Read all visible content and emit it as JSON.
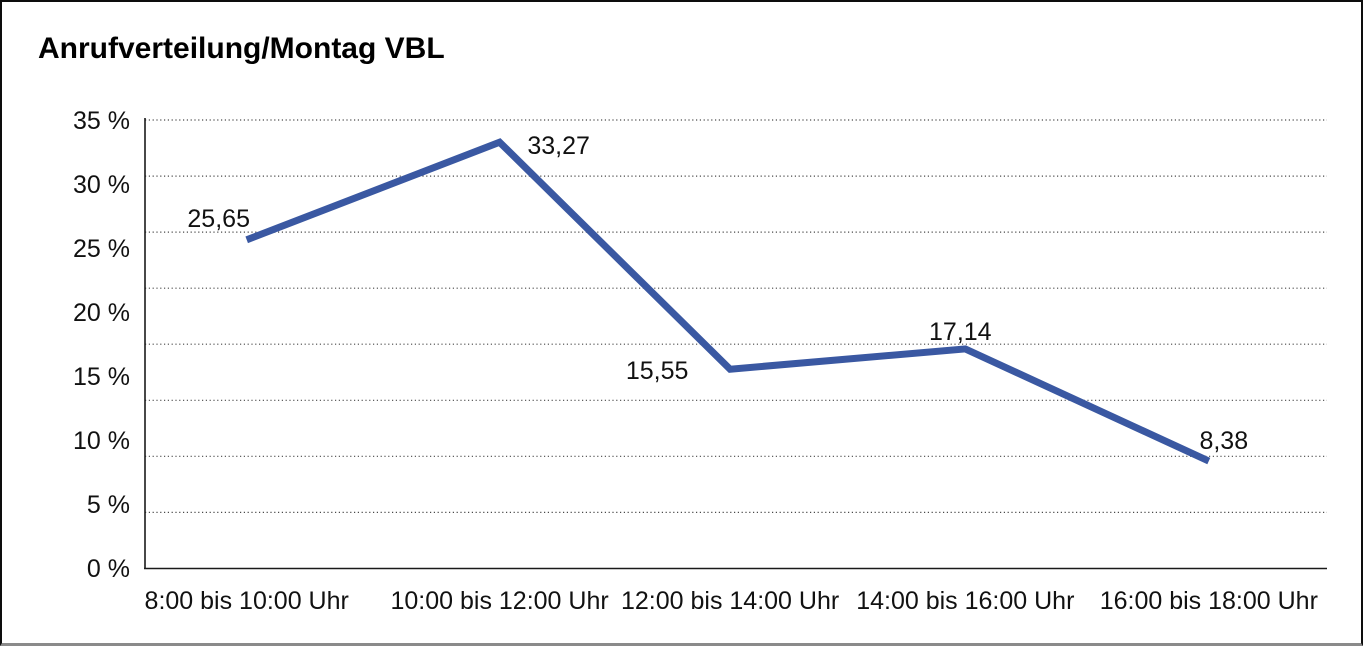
{
  "title": "Anrufverteilung/Montag VBL",
  "chart_data": {
    "type": "line",
    "title": "Anrufverteilung/Montag VBL",
    "categories": [
      "8:00 bis 10:00 Uhr",
      "10:00 bis 12:00 Uhr",
      "12:00 bis 14:00 Uhr",
      "14:00 bis 16:00 Uhr",
      "16:00 bis 18:00 Uhr"
    ],
    "values": [
      25.65,
      33.27,
      15.55,
      17.14,
      8.38
    ],
    "point_labels": [
      "25,65",
      "33,27",
      "15,55",
      "17,14",
      "8,38"
    ],
    "yticks": [
      "35 %",
      "30 %",
      "25 %",
      "20 %",
      "15 %",
      "10 %",
      "5 %",
      "0 %"
    ],
    "ylim": [
      0,
      35
    ],
    "xlabel": "",
    "ylabel": "",
    "legend": "none",
    "grid": "horizontal-dotted",
    "line_color": "#3A58A2",
    "text_color": "#111111",
    "background_color": "#ffffff"
  }
}
